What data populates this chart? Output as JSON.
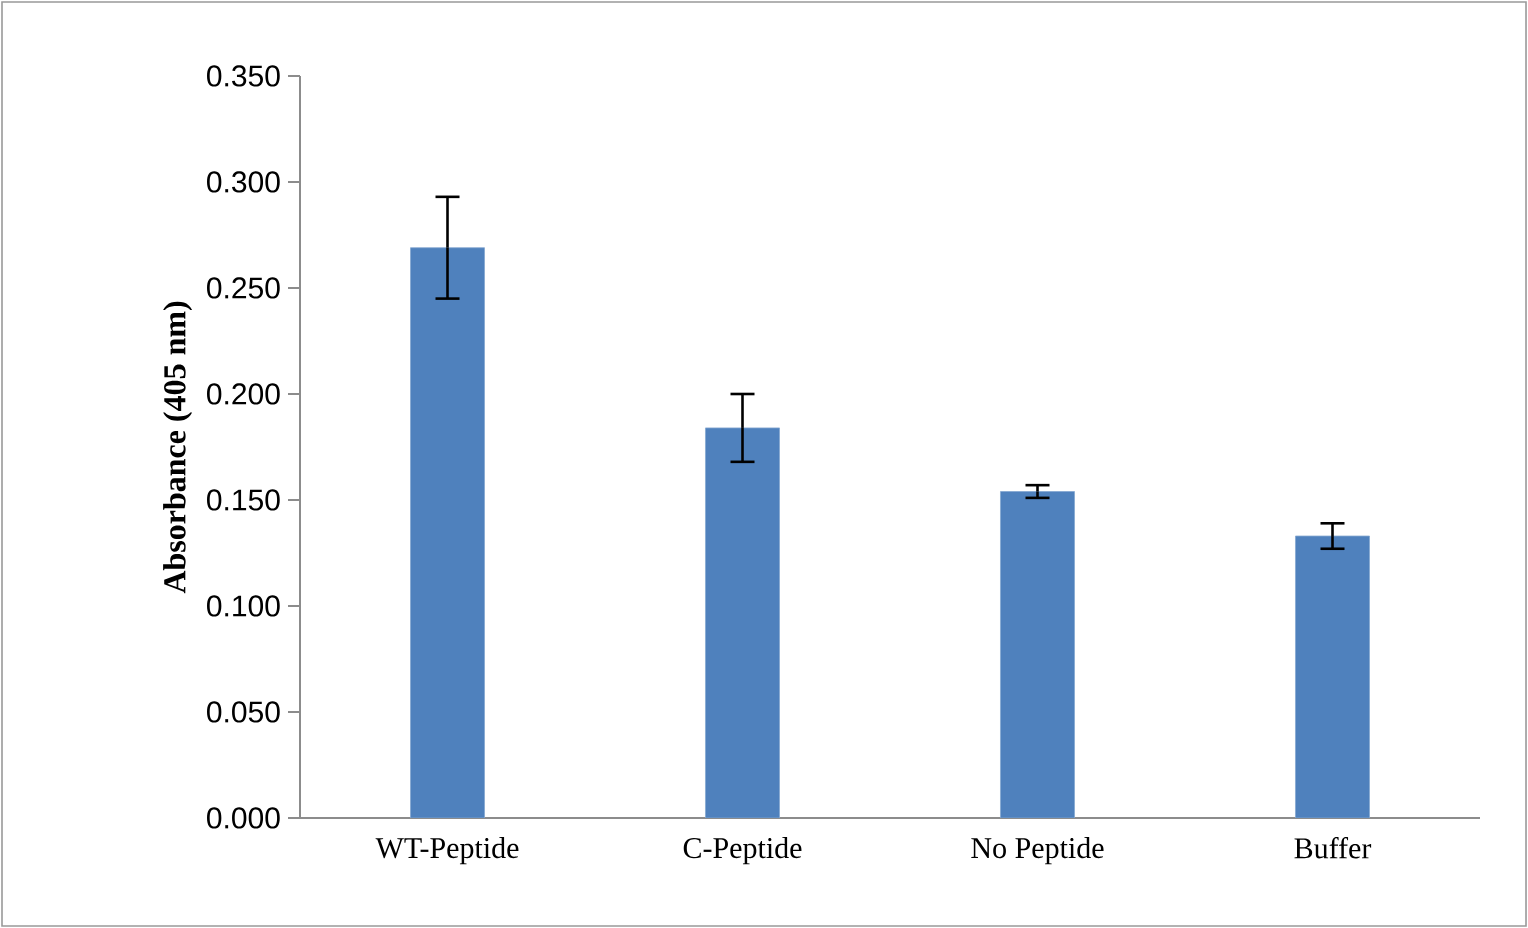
{
  "chart_data": {
    "type": "bar",
    "ylabel": "Absorbance (405 nm)",
    "categories": [
      "WT-Peptide",
      "C-Peptide",
      "No Peptide",
      "Buffer"
    ],
    "values": [
      0.269,
      0.184,
      0.154,
      0.133
    ],
    "errors": [
      0.024,
      0.016,
      0.003,
      0.006
    ],
    "color": "#4f81bd",
    "ylim": [
      0,
      0.35
    ],
    "yticks": [
      {
        "value": 0,
        "label": "0.000"
      },
      {
        "value": 0.05,
        "label": "0.050"
      },
      {
        "value": 0.1,
        "label": "0.100"
      },
      {
        "value": 0.15,
        "label": "0.150"
      },
      {
        "value": 0.2,
        "label": "0.200"
      },
      {
        "value": 0.25,
        "label": "0.250"
      },
      {
        "value": 0.3,
        "label": "0.300"
      },
      {
        "value": 0.35,
        "label": "0.350"
      }
    ],
    "grid": false
  }
}
